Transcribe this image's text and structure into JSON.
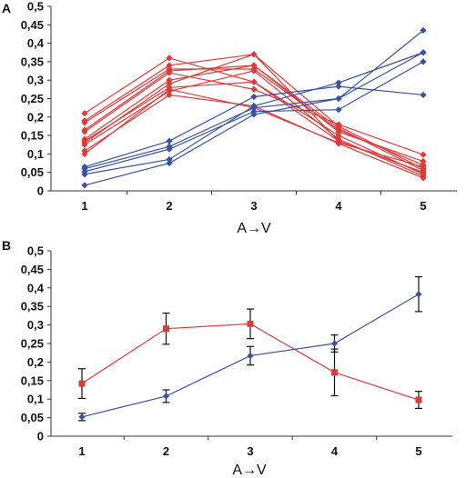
{
  "colors": {
    "red": "#dc3b3b",
    "blue": "#3a52a1",
    "axis": "#333333",
    "error": "#111111"
  },
  "chart_data": [
    {
      "type": "line",
      "panel": "A",
      "marker": "diamond",
      "grid": false,
      "legend": "none",
      "xlabel": "A→V",
      "ylabel": "",
      "x": [
        1,
        2,
        3,
        4,
        5
      ],
      "ylim": [
        0,
        0.5
      ],
      "yticks": [
        "0",
        "0,05",
        "0,1",
        "0,15",
        "0,2",
        "0,25",
        "0,3",
        "0,35",
        "0,4",
        "0,45",
        "0,5"
      ],
      "xticks": [
        "1",
        "2",
        "3",
        "4",
        "5"
      ],
      "series": [
        {
          "color": "red",
          "values": [
            0.21,
            0.36,
            0.295,
            0.135,
            0.05
          ]
        },
        {
          "color": "red",
          "values": [
            0.19,
            0.34,
            0.37,
            0.175,
            0.06
          ]
        },
        {
          "color": "red",
          "values": [
            0.185,
            0.33,
            0.33,
            0.165,
            0.07
          ]
        },
        {
          "color": "red",
          "values": [
            0.165,
            0.325,
            0.34,
            0.16,
            0.08
          ]
        },
        {
          "color": "red",
          "values": [
            0.16,
            0.32,
            0.275,
            0.18,
            0.098
          ]
        },
        {
          "color": "red",
          "values": [
            0.14,
            0.3,
            0.34,
            0.17,
            0.055
          ]
        },
        {
          "color": "red",
          "values": [
            0.135,
            0.28,
            0.295,
            0.15,
            0.045
          ]
        },
        {
          "color": "red",
          "values": [
            0.125,
            0.27,
            0.325,
            0.14,
            0.04
          ]
        },
        {
          "color": "red",
          "values": [
            0.108,
            0.26,
            0.23,
            0.128,
            0.035
          ]
        },
        {
          "color": "red",
          "values": [
            0.1,
            0.275,
            0.225,
            0.13,
            0.065
          ]
        },
        {
          "color": "red",
          "values": [
            0.13,
            0.29,
            0.37,
            0.135,
            0.05
          ]
        },
        {
          "color": "blue",
          "values": [
            0.065,
            0.135,
            0.255,
            0.283,
            0.26
          ]
        },
        {
          "color": "blue",
          "values": [
            0.06,
            0.12,
            0.225,
            0.25,
            0.435
          ]
        },
        {
          "color": "blue",
          "values": [
            0.052,
            0.113,
            0.215,
            0.22,
            0.35
          ]
        },
        {
          "color": "blue",
          "values": [
            0.045,
            0.085,
            0.23,
            0.293,
            0.375
          ]
        },
        {
          "color": "blue",
          "values": [
            0.015,
            0.075,
            0.207,
            0.25,
            0.375
          ]
        }
      ]
    },
    {
      "type": "line",
      "panel": "B",
      "grid": false,
      "legend": "none",
      "xlabel": "A→V",
      "ylabel": "",
      "x": [
        1,
        2,
        3,
        4,
        5
      ],
      "ylim": [
        0,
        0.5
      ],
      "yticks": [
        "0",
        "0,05",
        "0,1",
        "0,15",
        "0,2",
        "0,25",
        "0,3",
        "0,35",
        "0,4",
        "0,45",
        "0,5"
      ],
      "xticks": [
        "1",
        "2",
        "3",
        "4",
        "5"
      ],
      "series": [
        {
          "color": "red",
          "marker": "square",
          "values": [
            0.142,
            0.29,
            0.303,
            0.172,
            0.098
          ],
          "errors": [
            0.04,
            0.042,
            0.04,
            0.063,
            0.023
          ]
        },
        {
          "color": "blue",
          "marker": "diamond",
          "values": [
            0.052,
            0.108,
            0.217,
            0.25,
            0.383
          ],
          "errors": [
            0.01,
            0.017,
            0.025,
            0.023,
            0.047
          ]
        }
      ]
    }
  ]
}
